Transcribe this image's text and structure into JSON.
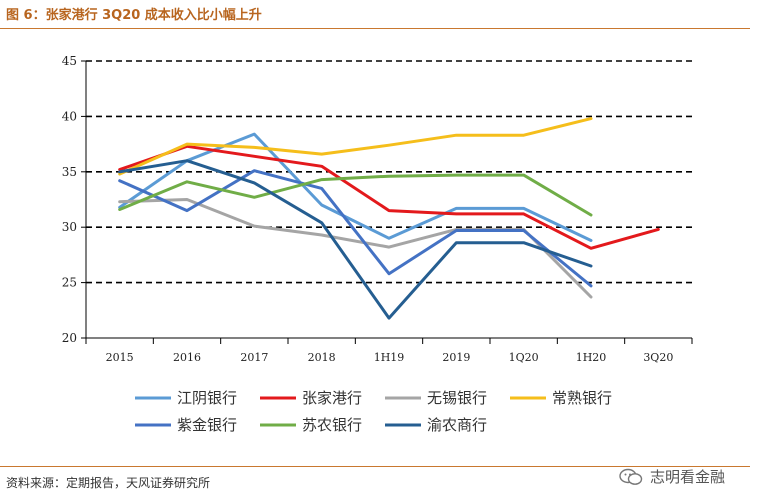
{
  "header": {
    "title": "图 6：张家港行 3Q20 成本收入比小幅上升"
  },
  "footer": {
    "source": "资料来源：定期报告，天风证券研究所",
    "watermark": "志明看金融"
  },
  "chart_data": {
    "type": "line",
    "categories": [
      "2015",
      "2016",
      "2017",
      "2018",
      "1H19",
      "2019",
      "1Q20",
      "1H20",
      "3Q20"
    ],
    "ylim": [
      20,
      45
    ],
    "yticks": [
      20,
      25,
      30,
      35,
      40,
      45
    ],
    "grid": "dashed horizontal",
    "legend_position": "bottom",
    "series": [
      {
        "name": "江阴银行",
        "color": "#5b9bd5",
        "values": [
          31.8,
          36.0,
          38.4,
          32.0,
          29.0,
          31.7,
          31.7,
          28.8,
          null
        ]
      },
      {
        "name": "张家港行",
        "color": "#e3191c",
        "values": [
          35.2,
          37.3,
          36.4,
          35.5,
          31.5,
          31.2,
          31.2,
          28.1,
          29.8
        ]
      },
      {
        "name": "无锡银行",
        "color": "#a5a5a5",
        "values": [
          32.3,
          32.5,
          30.1,
          29.3,
          28.2,
          29.8,
          29.8,
          23.7,
          null
        ]
      },
      {
        "name": "常熟银行",
        "color": "#f5be1b",
        "values": [
          34.8,
          37.5,
          37.2,
          36.6,
          37.4,
          38.3,
          38.3,
          39.8,
          null
        ]
      },
      {
        "name": "紫金银行",
        "color": "#4472c4",
        "values": [
          34.2,
          31.5,
          35.1,
          33.5,
          25.8,
          29.7,
          29.7,
          24.7,
          null
        ]
      },
      {
        "name": "苏农银行",
        "color": "#70ad47",
        "values": [
          31.6,
          34.1,
          32.7,
          34.3,
          34.6,
          34.7,
          34.7,
          31.1,
          null
        ]
      },
      {
        "name": "渝农商行",
        "color": "#255e91",
        "values": [
          35.0,
          36.0,
          34.0,
          30.4,
          21.8,
          28.6,
          28.6,
          26.5,
          null
        ]
      }
    ]
  }
}
